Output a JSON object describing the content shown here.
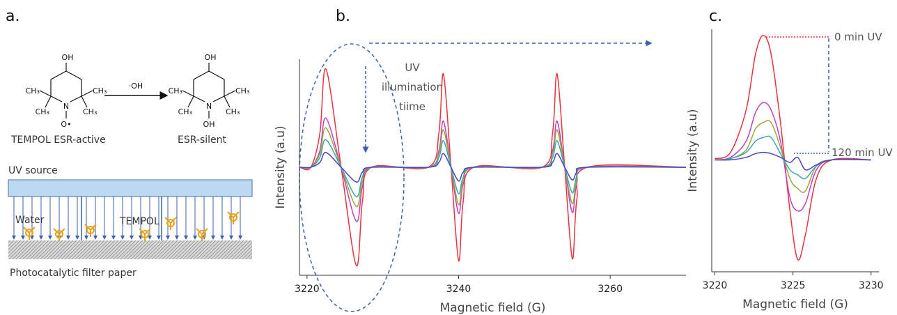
{
  "diagram": {
    "label": "a.",
    "reactant": {
      "labels": [
        "OH",
        "N",
        "O•",
        "CH₃",
        "CH₃",
        "CH₃",
        "CH₃"
      ],
      "caption": "TEMPOL ESR-active"
    },
    "reagent": "·OH",
    "product": {
      "labels": [
        "OH",
        "N",
        "OH",
        "CH₃",
        "CH₃",
        "CH₃",
        "CH₃"
      ],
      "caption": "ESR-silent"
    },
    "uv_source": "UV source",
    "water": "Water",
    "tempol": "TEMPOL",
    "filter": "Photocatalytic filter paper"
  },
  "chart_data": [
    {
      "type": "line",
      "panel_label": "b.",
      "xlabel": "Magnetic field (G)",
      "ylabel": "Intensity (a.u)",
      "annotation": [
        "UV",
        "illumination",
        "tiime"
      ],
      "xlim": [
        3219,
        3270
      ],
      "ylim": [
        -1.1,
        1.1
      ],
      "xticks": [
        3220,
        3240,
        3260
      ],
      "grid": false,
      "x": [
        3219,
        3220.5,
        3221.7,
        3222.5,
        3224.5,
        3226.5,
        3227.3,
        3228.5,
        3236,
        3237.4,
        3238,
        3239,
        3240,
        3240.6,
        3242,
        3251,
        3252.4,
        3253,
        3254,
        3255,
        3255.6,
        3257,
        3270
      ],
      "series": [
        {
          "color": "#e8323c",
          "values": [
            0,
            0,
            0.35,
            1,
            0,
            -1,
            -0.35,
            0,
            0,
            0.35,
            0.95,
            0,
            -0.95,
            -0.35,
            0,
            0,
            0.35,
            0.95,
            0,
            -0.93,
            -0.33,
            0,
            0
          ]
        },
        {
          "color": "#c040c0",
          "values": [
            0,
            0,
            0.17,
            0.5,
            0,
            -0.55,
            -0.2,
            0,
            0,
            0.17,
            0.47,
            0,
            -0.47,
            -0.17,
            0,
            0,
            0.17,
            0.47,
            0,
            -0.46,
            -0.16,
            0,
            0
          ]
        },
        {
          "color": "#9aa83a",
          "values": [
            0,
            0,
            0.14,
            0.4,
            0,
            -0.4,
            -0.14,
            0,
            0,
            0.14,
            0.38,
            0,
            -0.38,
            -0.14,
            0,
            0,
            0.14,
            0.38,
            0,
            -0.37,
            -0.13,
            0,
            0
          ]
        },
        {
          "color": "#3aa8b0",
          "values": [
            0,
            0,
            0.1,
            0.28,
            0,
            -0.3,
            -0.1,
            0,
            0,
            0.1,
            0.27,
            0,
            -0.27,
            -0.1,
            0,
            0,
            0.1,
            0.27,
            0,
            -0.26,
            -0.09,
            0,
            0
          ]
        },
        {
          "color": "#4a44c0",
          "values": [
            0,
            0,
            0.05,
            0.15,
            0,
            -0.15,
            -0.05,
            0,
            0,
            0.05,
            0.14,
            0,
            -0.14,
            -0.05,
            0,
            0,
            0.05,
            0.14,
            0,
            -0.13,
            -0.05,
            0,
            0
          ]
        }
      ]
    },
    {
      "type": "line",
      "panel_label": "c.",
      "xlabel": "Magnetic field (G)",
      "ylabel": "Intensity (a.u)",
      "annotation": [
        "0 min UV",
        "120 min UV"
      ],
      "xlim": [
        3219.8,
        3230.5
      ],
      "ylim": [
        -0.9,
        1.05
      ],
      "xticks": [
        3220,
        3225,
        3230
      ],
      "grid": false,
      "x": [
        3220,
        3221,
        3222,
        3222.6,
        3223.1,
        3223.6,
        3224.2,
        3224.8,
        3225.3,
        3225.8,
        3226.5,
        3227.5,
        3230
      ],
      "series": [
        {
          "color": "#e8323c",
          "values": [
            0.01,
            0.06,
            0.4,
            0.85,
            1,
            0.85,
            0.3,
            -0.4,
            -0.8,
            -0.6,
            -0.15,
            0,
            0
          ]
        },
        {
          "color": "#c040c0",
          "values": [
            0,
            0.02,
            0.15,
            0.38,
            0.46,
            0.4,
            0.15,
            -0.3,
            -0.41,
            -0.35,
            -0.08,
            0,
            0
          ]
        },
        {
          "color": "#9aa83a",
          "values": [
            0,
            0.01,
            0.08,
            0.25,
            0.3,
            0.3,
            0.1,
            -0.15,
            -0.23,
            -0.25,
            -0.05,
            0,
            0
          ]
        },
        {
          "color": "#3aa8b0",
          "values": [
            0,
            0.01,
            0.06,
            0.15,
            0.18,
            0.18,
            0.05,
            -0.08,
            -0.12,
            -0.15,
            -0.05,
            0,
            0
          ]
        },
        {
          "color": "#4a44c0",
          "values": [
            0,
            0,
            0.02,
            0.05,
            0.06,
            0.05,
            0.02,
            -0.02,
            0.02,
            -0.08,
            -0.04,
            0,
            0
          ]
        }
      ]
    }
  ]
}
